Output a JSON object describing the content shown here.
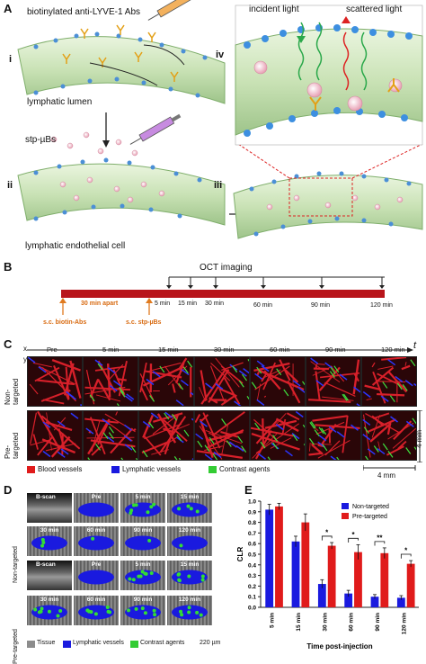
{
  "panel_a": {
    "label": "A",
    "numerals": {
      "i": "i",
      "ii": "ii",
      "iii": "iii",
      "iv": "iv"
    },
    "abs_label": "biotinylated anti-LYVE-1 Abs",
    "lumen_label": "lymphatic lumen",
    "ubs_label": "stp-µBs",
    "cell_label": "lymphatic endothelial cell",
    "incident_label": "incident light",
    "scattered_label": "scattered light"
  },
  "panel_b": {
    "label": "B",
    "title": "OCT imaging",
    "apart": "30 min apart",
    "ticks": [
      "5 min",
      "15 min",
      "30 min",
      "60 min",
      "90 min",
      "120 min"
    ],
    "biotin": "s.c. biotin-Abs",
    "stp": "s.c. stp-µBs"
  },
  "panel_c": {
    "label": "C",
    "axis_x": "x",
    "axis_t": "t",
    "axis_y": "y",
    "rows": [
      "Non-\ntargeted",
      "Pre-\ntargeted"
    ],
    "times": [
      "Pre",
      "5 min",
      "15 min",
      "30 min",
      "60 min",
      "90 min",
      "120 min"
    ],
    "legend": [
      "Blood vessels",
      "Lymphatic vessels",
      "Contrast agents"
    ],
    "scale_h": "4 mm",
    "scale_v": "4 mm"
  },
  "panel_d": {
    "label": "D",
    "bscan": "B-scan",
    "axis_x": "x",
    "depth": "Depth",
    "rows": [
      "Non-targeted",
      "Pre-targeted"
    ],
    "times_top": [
      "Pre",
      "5 min",
      "15 min"
    ],
    "times_bottom": [
      "30 min",
      "60 min",
      "90 min",
      "120 min"
    ],
    "legend": [
      "Tissue",
      "Lymphatic vessels",
      "Contrast agents"
    ],
    "scale_h": "220 µm",
    "scale_v": "150 µm"
  },
  "panel_e": {
    "label": "E",
    "colors": {
      "nontargeted": "#1a1adf",
      "pretargeted": "#e01b1b"
    },
    "chart_data": {
      "type": "bar",
      "categories": [
        "5 min",
        "15 min",
        "30 min",
        "60 min",
        "90 min",
        "120 min"
      ],
      "series": [
        {
          "name": "Non-targeted",
          "values": [
            0.92,
            0.62,
            0.22,
            0.13,
            0.1,
            0.09
          ],
          "errors": [
            0.05,
            0.05,
            0.04,
            0.03,
            0.02,
            0.02
          ]
        },
        {
          "name": "Pre-targeted",
          "values": [
            0.95,
            0.8,
            0.58,
            0.52,
            0.51,
            0.41
          ],
          "errors": [
            0.03,
            0.08,
            0.03,
            0.07,
            0.05,
            0.03
          ]
        }
      ],
      "significance": [
        "",
        "",
        "*",
        "*",
        "**",
        "*"
      ],
      "xlabel": "Time post-injection",
      "ylabel": "CLR",
      "ylim": [
        0.0,
        1.0
      ],
      "yticks": [
        "0.0",
        "0.1",
        "0.2",
        "0.3",
        "0.4",
        "0.5",
        "0.6",
        "0.7",
        "0.8",
        "0.9",
        "1.0"
      ],
      "legend": "top-right"
    }
  }
}
